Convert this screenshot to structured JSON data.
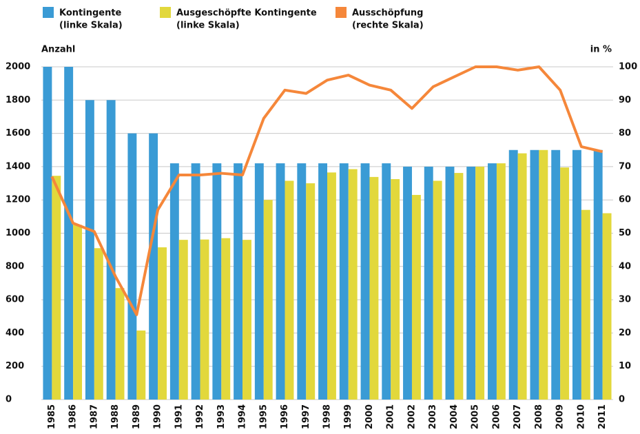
{
  "chart_data": {
    "type": "bar_line",
    "y_label": "Anzahl",
    "y2_label": "in %",
    "categories": [
      "1985",
      "1986",
      "1987",
      "1988",
      "1989",
      "1990",
      "1991",
      "1992",
      "1993",
      "1994",
      "1995",
      "1996",
      "1997",
      "1998",
      "1999",
      "2000",
      "2001",
      "2002",
      "2003",
      "2004",
      "2005",
      "2006",
      "2007",
      "2008",
      "2009",
      "2010",
      "2011"
    ],
    "series": [
      {
        "name": "Kontingente",
        "legend_note": "(linke Skala)",
        "type": "bar",
        "color": "#3a9bd5",
        "values": [
          2000,
          2000,
          1800,
          1800,
          1600,
          1600,
          1420,
          1420,
          1420,
          1420,
          1420,
          1420,
          1420,
          1420,
          1420,
          1420,
          1420,
          1400,
          1400,
          1400,
          1400,
          1420,
          1500,
          1500,
          1500,
          1500,
          1500
        ]
      },
      {
        "name": "Ausgeschöpfte Kontingente",
        "legend_note": "(linke Skala)",
        "type": "bar",
        "color": "#e2d83c",
        "values": [
          1345,
          1050,
          910,
          670,
          415,
          915,
          960,
          962,
          970,
          960,
          1200,
          1315,
          1300,
          1365,
          1385,
          1338,
          1325,
          1230,
          1315,
          1362,
          1400,
          1420,
          1480,
          1500,
          1395,
          1140,
          1120
        ]
      },
      {
        "name": "Ausschöpfung",
        "legend_note": "(rechte Skala)",
        "type": "line",
        "axis": "y2",
        "color": "#f5873a",
        "values": [
          67,
          53,
          50.5,
          37,
          25.5,
          57,
          67.5,
          67.5,
          68,
          67.5,
          84.5,
          93,
          92,
          96,
          97.5,
          94.5,
          93,
          87.5,
          94,
          97,
          100,
          100,
          99,
          100,
          93,
          76,
          74.5
        ]
      }
    ],
    "ylim": [
      0,
      2000
    ],
    "yticks": [
      0,
      200,
      400,
      600,
      800,
      1000,
      1200,
      1400,
      1600,
      1800,
      2000
    ],
    "y2lim": [
      0,
      100
    ],
    "y2ticks": [
      0,
      10,
      20,
      30,
      40,
      50,
      60,
      70,
      80,
      90,
      100
    ],
    "grid": true
  }
}
